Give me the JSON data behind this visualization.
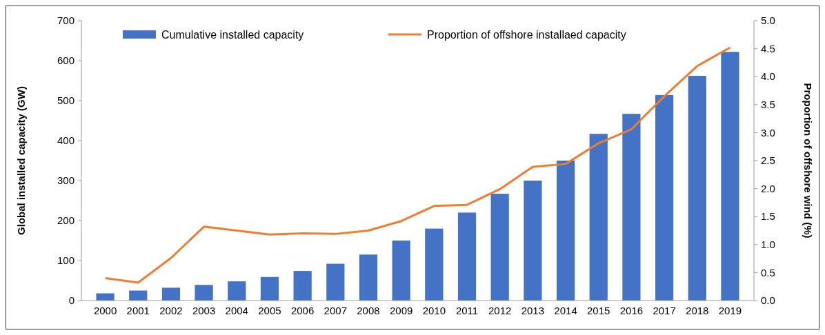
{
  "chart_data": {
    "type": "bar",
    "ylabel": "Global installed capacity (GW)",
    "y2label": "Proportion of offshore wind (%)",
    "categories": [
      "2000",
      "2001",
      "2002",
      "2003",
      "2004",
      "2005",
      "2006",
      "2007",
      "2008",
      "2009",
      "2010",
      "2011",
      "2012",
      "2013",
      "2014",
      "2015",
      "2016",
      "2017",
      "2018",
      "2019"
    ],
    "series": [
      {
        "name": "Cumulative installed capacity",
        "color": "#4472c4",
        "values": [
          18,
          25,
          32,
          39,
          48,
          59,
          74,
          92,
          115,
          150,
          180,
          220,
          267,
          300,
          350,
          417,
          467,
          514,
          562,
          622
        ]
      },
      {
        "name": "Proportion of offshore installaed capacity",
        "type": "line",
        "axis": "y2",
        "color": "#ed7d31",
        "values": [
          0.4,
          0.32,
          0.76,
          1.32,
          1.25,
          1.18,
          1.2,
          1.19,
          1.25,
          1.42,
          1.69,
          1.71,
          1.99,
          2.39,
          2.44,
          2.81,
          3.06,
          3.65,
          4.19,
          4.52
        ]
      }
    ],
    "ylim": [
      0,
      700
    ],
    "yticks": [
      0,
      100,
      200,
      300,
      400,
      500,
      600,
      700
    ],
    "y2lim": [
      0,
      5
    ],
    "y2ticks": [
      {
        "value": 0,
        "label": "0.0"
      },
      {
        "value": 0.5,
        "label": "0.5"
      },
      {
        "value": 1,
        "label": "1.0"
      },
      {
        "value": 1.5,
        "label": "1.5"
      },
      {
        "value": 2,
        "label": "2.0"
      },
      {
        "value": 2.5,
        "label": "2.5"
      },
      {
        "value": 3,
        "label": "3.0"
      },
      {
        "value": 3.5,
        "label": "3.5"
      },
      {
        "value": 4,
        "label": "4.0"
      },
      {
        "value": 4.5,
        "label": "4.5"
      },
      {
        "value": 5,
        "label": "5.0"
      }
    ],
    "legend": "top",
    "grid": false
  }
}
